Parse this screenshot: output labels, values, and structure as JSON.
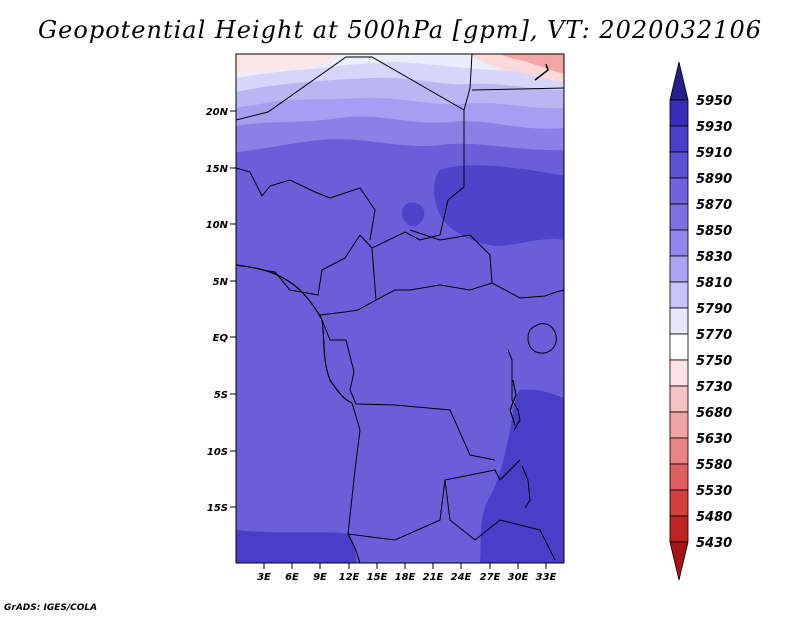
{
  "title": "Geopotential Height at 500hPa [gpm], VT: 2020032106",
  "credit": "GrADS: IGES/COLA",
  "map": {
    "lat_labels": [
      "20N",
      "15N",
      "10N",
      "5N",
      "EQ",
      "5S",
      "10S",
      "15S"
    ],
    "lon_labels": [
      "3E",
      "6E",
      "9E",
      "12E",
      "15E",
      "18E",
      "21E",
      "24E",
      "27E",
      "30E",
      "33E"
    ],
    "bands": [
      {
        "level": 5790,
        "color": "#fde3e3"
      },
      {
        "level": 5810,
        "color": "#e7e7fc"
      },
      {
        "level": 5830,
        "color": "#c6c6f5"
      },
      {
        "level": 5850,
        "color": "#a39ff0"
      },
      {
        "level": 5870,
        "color": "#8c82e8"
      },
      {
        "level": 5890,
        "color": "#6e63db"
      },
      {
        "level": 5910,
        "color": "#4f41cf"
      },
      {
        "level": 5930,
        "color": "#3a2eb8"
      }
    ]
  },
  "colorbar": {
    "levels": [
      "5950",
      "5930",
      "5910",
      "5890",
      "5870",
      "5850",
      "5830",
      "5810",
      "5790",
      "5770",
      "5750",
      "5730",
      "5680",
      "5630",
      "5580",
      "5530",
      "5480",
      "5430"
    ],
    "colors": [
      "#27208f",
      "#3a2eb8",
      "#4b3fc9",
      "#5d52d5",
      "#6e63db",
      "#7d71e2",
      "#9186e9",
      "#aba5f1",
      "#c8c4f8",
      "#e7e7fc",
      "#ffffff",
      "#fde3e3",
      "#f7c2c2",
      "#f0a4a4",
      "#e88484",
      "#de5f5f",
      "#d33e3e",
      "#bf2424",
      "#a81515"
    ]
  }
}
